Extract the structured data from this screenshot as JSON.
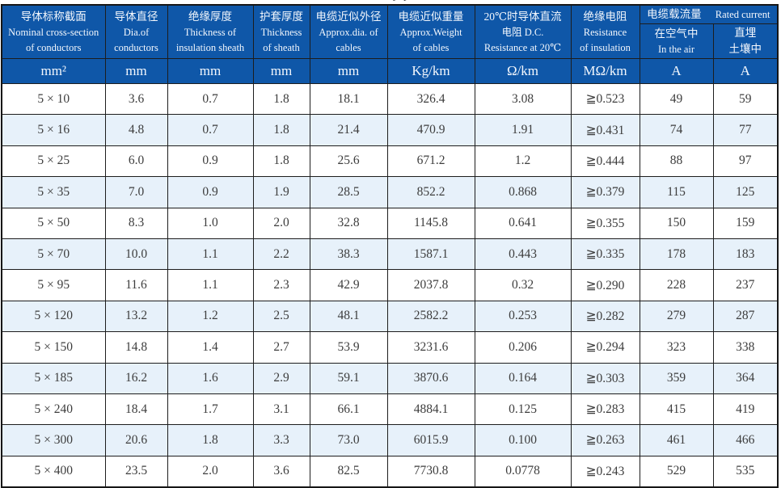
{
  "page": {
    "cropped_title_fragment": "yp"
  },
  "colors": {
    "header_blue": "#0f57a8",
    "alt_row_blue": "#e7f1fa",
    "border_dark": "#1d1d1d",
    "data_text": "#3d3d3d",
    "header_text": "#f3f7fd"
  },
  "table": {
    "header": {
      "cols": [
        {
          "zh": "导体标称截面",
          "en1": "Nominal cross-section",
          "en2": "of conductors"
        },
        {
          "zh": "导体直径",
          "en1": "Dia.of",
          "en2": "conductors"
        },
        {
          "zh": "绝缘厚度",
          "en1": "Thickness of",
          "en2": "insulation sheath"
        },
        {
          "zh": "护套厚度",
          "en1": "Thickness",
          "en2": "of sheath"
        },
        {
          "zh": "电缆近似外径",
          "en1": "Approx.dia. of",
          "en2": "cables"
        },
        {
          "zh": "电缆近似重量",
          "en1": "Approx.Weight",
          "en2": "of cables"
        },
        {
          "zh": "20℃时导体直流",
          "en1": "电阻 D.C.",
          "en2": "Resistance at 20℃"
        },
        {
          "zh": "绝缘电阻",
          "en1": "Resistance",
          "en2": "of insulation"
        }
      ],
      "group": {
        "zh": "电缆载流量",
        "en": "Rated current"
      },
      "sub": [
        {
          "line1": "在空气中",
          "line2": "In the air"
        },
        {
          "line1": "直埋",
          "line2": "土壤中"
        }
      ]
    },
    "units": [
      "mm²",
      "mm",
      "mm",
      "mm",
      "mm",
      "Kg/km",
      "Ω/km",
      "MΩ/km",
      "A",
      "A"
    ],
    "rows": [
      [
        "5 × 10",
        "3.6",
        "0.7",
        "1.8",
        "18.1",
        "326.4",
        "3.08",
        "≧0.523",
        "49",
        "59"
      ],
      [
        "5 × 16",
        "4.8",
        "0.7",
        "1.8",
        "21.4",
        "470.9",
        "1.91",
        "≧0.431",
        "74",
        "77"
      ],
      [
        "5 × 25",
        "6.0",
        "0.9",
        "1.8",
        "25.6",
        "671.2",
        "1.2",
        "≧0.444",
        "88",
        "97"
      ],
      [
        "5 × 35",
        "7.0",
        "0.9",
        "1.9",
        "28.5",
        "852.2",
        "0.868",
        "≧0.379",
        "115",
        "125"
      ],
      [
        "5 × 50",
        "8.3",
        "1.0",
        "2.0",
        "32.8",
        "1145.8",
        "0.641",
        "≧0.355",
        "150",
        "159"
      ],
      [
        "5 × 70",
        "10.0",
        "1.1",
        "2.2",
        "38.3",
        "1587.1",
        "0.443",
        "≧0.335",
        "178",
        "183"
      ],
      [
        "5 × 95",
        "11.6",
        "1.1",
        "2.3",
        "42.9",
        "2037.8",
        "0.32",
        "≧0.290",
        "228",
        "237"
      ],
      [
        "5 × 120",
        "13.2",
        "1.2",
        "2.5",
        "48.1",
        "2582.2",
        "0.253",
        "≧0.282",
        "279",
        "287"
      ],
      [
        "5 × 150",
        "14.8",
        "1.4",
        "2.7",
        "53.9",
        "3231.6",
        "0.206",
        "≧0.294",
        "323",
        "338"
      ],
      [
        "5 × 185",
        "16.2",
        "1.6",
        "2.9",
        "59.1",
        "3870.6",
        "0.164",
        "≧0.303",
        "359",
        "364"
      ],
      [
        "5 × 240",
        "18.4",
        "1.7",
        "3.1",
        "66.1",
        "4884.1",
        "0.125",
        "≧0.283",
        "415",
        "419"
      ],
      [
        "5 × 300",
        "20.6",
        "1.8",
        "3.3",
        "73.0",
        "6015.9",
        "0.100",
        "≧0.263",
        "461",
        "466"
      ],
      [
        "5 × 400",
        "23.5",
        "2.0",
        "3.6",
        "82.5",
        "7730.8",
        "0.0778",
        "≧0.243",
        "529",
        "535"
      ]
    ]
  }
}
